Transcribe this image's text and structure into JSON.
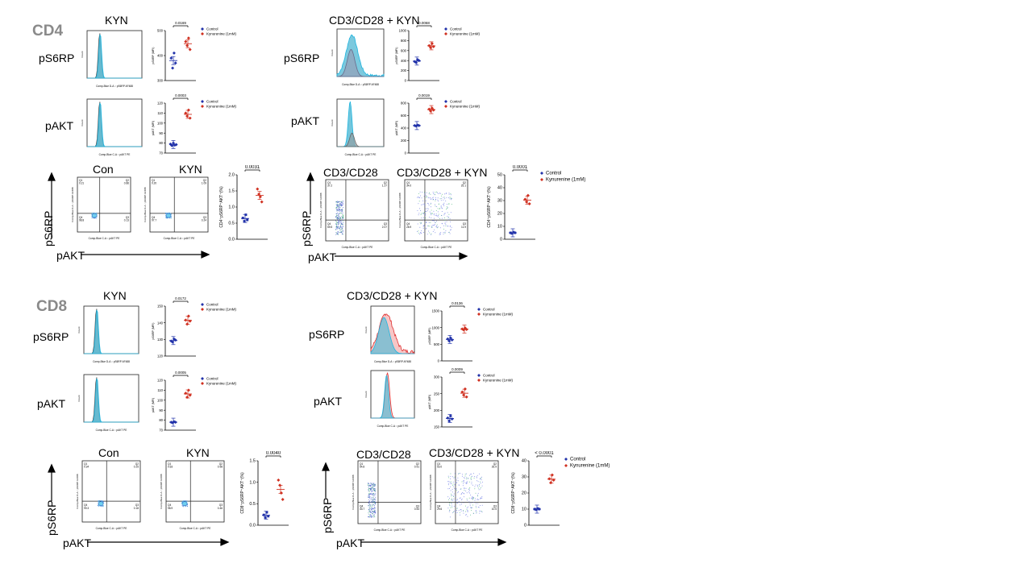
{
  "cd4": {
    "title": "CD4",
    "kyn": {
      "title": "KYN",
      "rows": [
        {
          "label": "pS6RP",
          "xaxis": "Comp-Blue D-A :: pS6RP AF488",
          "stat": {
            "p": "0.0169",
            "ylabel": "pS6RP (MFI)",
            "ticks": [
              "500",
              "400",
              "300"
            ],
            "legend": [
              "Control",
              "Kynurenine (1mM)"
            ],
            "control": [
              0.45,
              0.25,
              0.55,
              0.35
            ],
            "kyn": [
              0.78,
              0.7,
              0.85,
              0.62
            ]
          }
        },
        {
          "label": "pAKT",
          "xaxis": "Comp-Blue C-A :: pAKT PE",
          "stat": {
            "p": "0.0003",
            "ylabel": "pAKT (MFI)",
            "ticks": [
              "120",
              "110",
              "100",
              "90",
              "80",
              "70"
            ],
            "legend": [
              "Control",
              "Kynurenine (1mM)"
            ],
            "control": [
              0.18,
              0.15,
              0.2,
              0.16,
              0.17
            ],
            "kyn": [
              0.8,
              0.74,
              0.86,
              0.7
            ]
          }
        }
      ],
      "quad": {
        "plots": [
          {
            "title": "Con",
            "q1": "Q1\n0.21",
            "q2": "Q2\n0.86",
            "q3": "Q3\n0.13",
            "q4": "Q4\n98.8"
          },
          {
            "title": "KYN",
            "q1": "Q1\n0.20",
            "q2": "Q2\n1.09",
            "q3": "Q3\n0.24",
            "q4": "Q4\n97.7"
          }
        ],
        "y_label": "pS6RP",
        "x_label": "pAKT",
        "yaxis": "Comp-Blue D-A :: pS6RP AF488",
        "xaxis": "Comp-Blue C-A :: pAKT PE",
        "stat": {
          "p": "0.0031",
          "ylabel": "CD4⁺pS6RP⁺AKT⁺(%)",
          "ticks": [
            "2.0",
            "1.5",
            "1.0",
            "0.5",
            "0.0"
          ],
          "control": [
            0.33,
            0.28,
            0.38,
            0.3
          ],
          "kyn": [
            0.78,
            0.7,
            0.66,
            0.58
          ]
        }
      }
    },
    "cd3": {
      "title": "CD3/CD28 + KYN",
      "rows": [
        {
          "label": "pS6RP",
          "xaxis": "Comp-Blue D-A :: pS6RP AF488",
          "stat": {
            "p": "0.0068",
            "ylabel": "pS6RP (MFI)",
            "ticks": [
              "1000",
              "800",
              "600",
              "400",
              "200",
              "0"
            ],
            "legend": [
              "Control",
              "Kynurenine (1mM)"
            ],
            "control": [
              0.38,
              0.36,
              0.42,
              0.4
            ],
            "kyn": [
              0.7,
              0.66,
              0.74,
              0.68
            ]
          }
        },
        {
          "label": "pAKT",
          "xaxis": "Comp-Blue C-A :: pAKT PE",
          "stat": {
            "p": "0.0019",
            "ylabel": "pAKT (MFI)",
            "ticks": [
              "800",
              "600",
              "400",
              "200",
              "0"
            ],
            "legend": [
              "Control",
              "Kynurenine (1mM)"
            ],
            "control": [
              0.55,
              0.54,
              0.56,
              0.55
            ],
            "kyn": [
              0.88,
              0.84,
              0.9,
              0.86
            ]
          }
        }
      ],
      "quad": {
        "plots": [
          {
            "title": "CD3/CD28",
            "q1": "Q1\n37.2",
            "q2": "Q2\n1.27",
            "q3": "Q3\n2.07",
            "q4": "Q4\n59.5"
          },
          {
            "title": "CD3/CD28 + KYN",
            "q1": "Q1\n34.0",
            "q2": "Q2\n25.1",
            "q3": "Q3\n11.9",
            "q4": "Q4\n28.9"
          }
        ],
        "y_label": "pS6RP",
        "x_label": "pAKT",
        "yaxis": "Comp-Blue D-A :: pS6RP AF488",
        "xaxis": "Comp-Blue C-A :: pAKT PE",
        "stat": {
          "p": "0.0001",
          "ylabel": "CD4⁺pS6RP⁺AKT⁺(%)",
          "ticks": [
            "50",
            "40",
            "30",
            "20",
            "10",
            "0"
          ],
          "legend": [
            "Control",
            "Kynurenine (1mM)"
          ],
          "control": [
            0.1,
            0.09,
            0.11,
            0.1
          ],
          "kyn": [
            0.62,
            0.58,
            0.68,
            0.55
          ]
        }
      }
    }
  },
  "cd8": {
    "title": "CD8",
    "kyn": {
      "title": "KYN",
      "rows": [
        {
          "label": "pS6RP",
          "xaxis": "Comp-Blue D-A :: pS6RP AF488",
          "stat": {
            "p": "0.0172",
            "ylabel": "pS6RP (MFI)",
            "ticks": [
              "150",
              "140",
              "130",
              "120"
            ],
            "legend": [
              "Control",
              "Kynurenine (1mM)"
            ],
            "control": [
              0.3,
              0.28,
              0.34,
              0.32
            ],
            "kyn": [
              0.72,
              0.64,
              0.8,
              0.7
            ]
          }
        },
        {
          "label": "pAKT",
          "xaxis": "Comp-Blue C-A :: pAKT PE",
          "stat": {
            "p": "0.0005",
            "ylabel": "pAKT (MFI)",
            "ticks": [
              "120",
              "110",
              "100",
              "90",
              "80",
              "70"
            ],
            "legend": [
              "Control",
              "Kynurenine (1mM)"
            ],
            "control": [
              0.16,
              0.15,
              0.17,
              0.16
            ],
            "kyn": [
              0.74,
              0.66,
              0.8,
              0.7
            ]
          }
        }
      ],
      "quad": {
        "plots": [
          {
            "title": "Con",
            "q1": "Q1\n0.34",
            "q2": "Q2\n0.25",
            "q3": "Q3\n0.18",
            "q4": "Q4\n99.3"
          },
          {
            "title": "KYN",
            "q1": "Q1\n0.63",
            "q2": "Q2\n0.98",
            "q3": "Q3\n0.46",
            "q4": "Q4\n98.9"
          }
        ],
        "y_label": "pS6RP",
        "x_label": "pAKT",
        "yaxis": "Comp-Blue D-A :: pS6RP AF488",
        "xaxis": "Comp-Blue C-A :: pAKT PE",
        "stat": {
          "p": "0.0040",
          "ylabel": "CD8⁺pS6RP⁺AKT⁺(%)",
          "ticks": [
            "1.5",
            "1.0",
            "0.5",
            "0.0"
          ],
          "control": [
            0.16,
            0.12,
            0.2,
            0.14
          ],
          "kyn": [
            0.7,
            0.62,
            0.5,
            0.4
          ]
        }
      }
    },
    "cd3": {
      "title": "CD3/CD28 + KYN",
      "rows": [
        {
          "label": "pS6RP",
          "xaxis": "Comp-Blue D-A :: pS6RP AF488",
          "stat": {
            "p": "0.0136",
            "ylabel": "pS6RP (MFI)",
            "ticks": [
              "1500",
              "1000",
              "500",
              "0"
            ],
            "legend": [
              "Control",
              "Kynurenine (1mM)"
            ],
            "control": [
              0.44,
              0.4,
              0.46,
              0.42
            ],
            "kyn": [
              0.64,
              0.62,
              0.66,
              0.63
            ]
          }
        },
        {
          "label": "pAKT",
          "xaxis": "Comp-Blue C-A :: pAKT PE",
          "stat": {
            "p": "0.0009",
            "ylabel": "pAKT (MFI)",
            "ticks": [
              "300",
              "250",
              "200",
              "150"
            ],
            "legend": [
              "Control",
              "Kynurenine (1mM)"
            ],
            "control": [
              0.18,
              0.12,
              0.22,
              0.16
            ],
            "kyn": [
              0.7,
              0.64,
              0.76,
              0.6
            ]
          }
        }
      ],
      "quad": {
        "plots": [
          {
            "title": "CD3/CD28",
            "q1": "Q1\n54.8",
            "q2": "Q2\n0.91",
            "q3": "Q3\n0.53",
            "q4": "Q4\n43.7"
          },
          {
            "title": "CD3/CD28 + KYN",
            "q1": "Q1\n53.0",
            "q2": "Q2\n26.9",
            "q3": "Q3\n10.5",
            "q4": "Q4\n29.6"
          }
        ],
        "y_label": "pS6RP",
        "x_label": "pAKT",
        "yaxis": "Comp-Blue D-A :: pS6RP AF488",
        "xaxis": "Comp-Blue C-A :: pAKT PE",
        "stat": {
          "p": "< 0.0001",
          "ylabel": "CD8⁺pS6RP⁺AKT⁺(%)",
          "ticks": [
            "40",
            "30",
            "20",
            "10",
            "0"
          ],
          "legend": [
            "Control",
            "Kynurenine (1mM)"
          ],
          "control": [
            0.25,
            0.24,
            0.26,
            0.25
          ],
          "kyn": [
            0.72,
            0.66,
            0.78,
            0.7
          ]
        }
      }
    }
  },
  "colors": {
    "control": "#2233aa",
    "kyn": "#d03020",
    "hist_fill": "#5bbcd6",
    "hist_ctrl": "#1fb6e0",
    "hist_kyn": "#e03030",
    "gray_title": "#8a8a8a"
  }
}
